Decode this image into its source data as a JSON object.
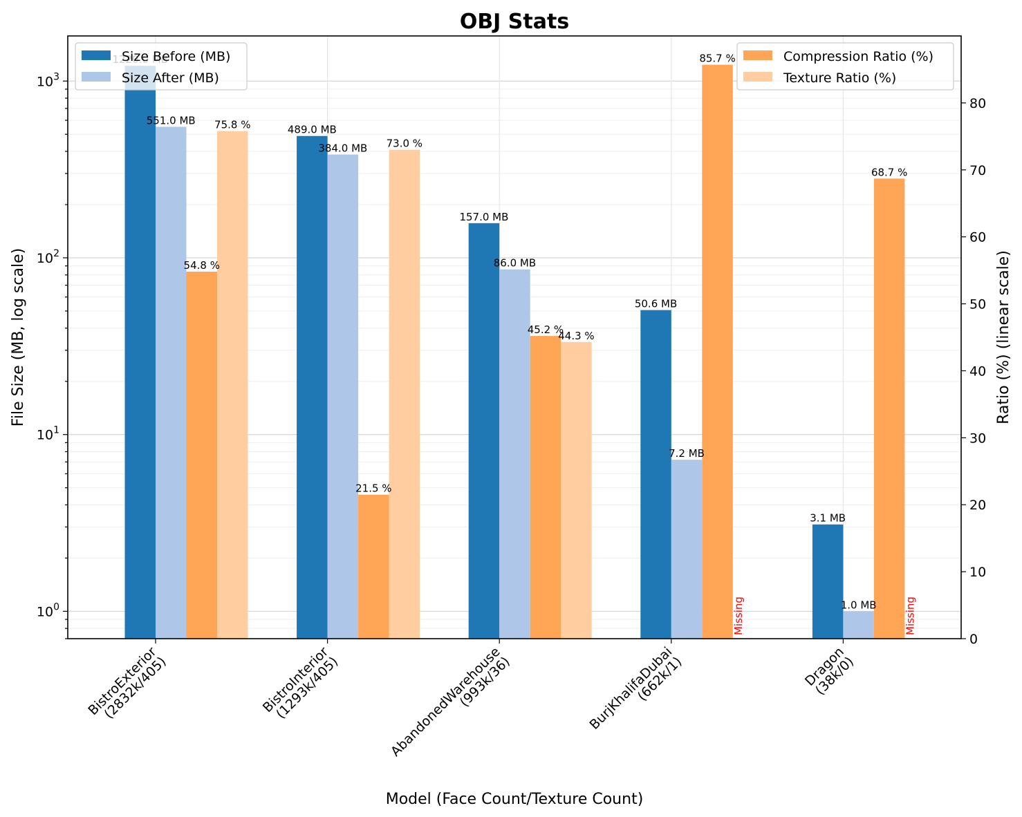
{
  "chart_data": {
    "type": "bar",
    "title": "OBJ Stats",
    "xlabel": "Model (Face Count/Texture Count)",
    "ylabel_left": "File Size (MB, log scale)",
    "ylabel_right": "Ratio (%) (linear scale)",
    "y_left_scale": "log",
    "y_left_range": [
      0.7,
      1800
    ],
    "y_left_ticks": [
      1,
      10,
      100,
      1000
    ],
    "y_right_scale": "linear",
    "y_right_range": [
      0,
      90
    ],
    "y_right_ticks": [
      0,
      10,
      20,
      30,
      40,
      50,
      60,
      70,
      80
    ],
    "grid": true,
    "categories": [
      [
        "BistroExterior",
        "(2832k/405)"
      ],
      [
        "BistroInterior",
        "(1293k/405)"
      ],
      [
        "AbandonedWarehouse",
        "(993k/36)"
      ],
      [
        "BurjKhalifaDubai",
        "(662k/1)"
      ],
      [
        "Dragon",
        "(38k/0)"
      ]
    ],
    "series": [
      {
        "name": "Size Before (MB)",
        "axis": "left",
        "color": "#1f77b4",
        "values": [
          1220,
          489,
          157,
          50.6,
          3.1
        ],
        "labels": [
          "1220.0 MB",
          "489.0 MB",
          "157.0 MB",
          "50.6 MB",
          "3.1 MB"
        ]
      },
      {
        "name": "Size After (MB)",
        "axis": "left",
        "color": "#aec7e8",
        "values": [
          551,
          384,
          86,
          7.2,
          1.0
        ],
        "labels": [
          "551.0 MB",
          "384.0 MB",
          "86.0 MB",
          "7.2 MB",
          "1.0 MB"
        ]
      },
      {
        "name": "Compression Ratio (%)",
        "axis": "right",
        "color": "#ffa556",
        "values": [
          54.8,
          21.5,
          45.2,
          85.7,
          68.7
        ],
        "labels": [
          "54.8 %",
          "21.5 %",
          "45.2 %",
          "85.7 %",
          "68.7 %"
        ]
      },
      {
        "name": "Texture Ratio (%)",
        "axis": "right",
        "color": "#ffcd9f",
        "values": [
          75.8,
          73.0,
          44.3,
          null,
          null
        ],
        "labels": [
          "75.8 %",
          "73.0 %",
          "44.3 %",
          "Missing",
          "Missing"
        ]
      }
    ],
    "legend_left": {
      "position": "upper-left",
      "entries": [
        "Size Before (MB)",
        "Size After (MB)"
      ]
    },
    "legend_right": {
      "position": "upper-right",
      "entries": [
        "Compression Ratio (%)",
        "Texture Ratio (%)"
      ]
    }
  }
}
